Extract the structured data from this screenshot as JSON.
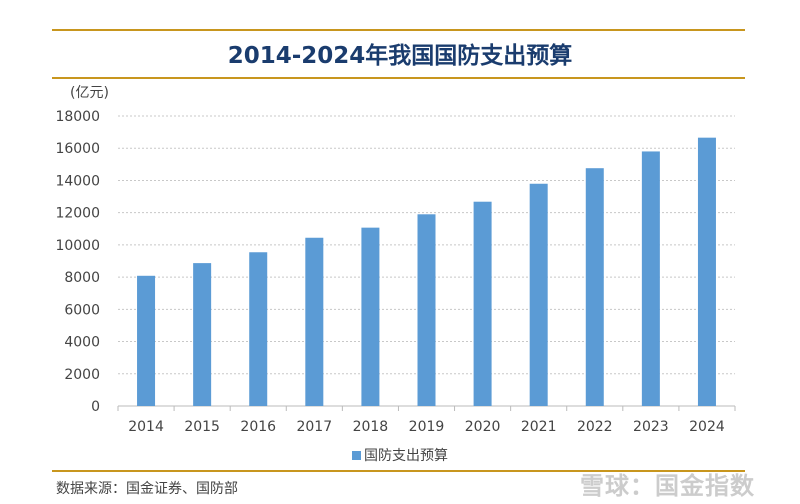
{
  "chart_data": {
    "type": "bar",
    "title": "2014-2024年我国国防支出预算",
    "ylabel": "(亿元)",
    "xlabel": "",
    "categories": [
      "2014",
      "2015",
      "2016",
      "2017",
      "2018",
      "2019",
      "2020",
      "2021",
      "2022",
      "2023",
      "2024"
    ],
    "series": [
      {
        "name": "国防支出预算",
        "values": [
          8082,
          8869,
          9543,
          10443,
          11070,
          11899,
          12680,
          13795,
          14760,
          15800,
          16655
        ],
        "color": "#5b9bd5"
      }
    ],
    "ylim": [
      0,
      18000
    ],
    "yticks": [
      0,
      2000,
      4000,
      6000,
      8000,
      10000,
      12000,
      14000,
      16000,
      18000
    ],
    "grid": true,
    "legend": "bottom"
  },
  "source": "数据来源：国金证券、国防部",
  "watermark": "雪球：国金指数",
  "colors": {
    "accent_line": "#c8961e",
    "title": "#1a3c6e"
  }
}
